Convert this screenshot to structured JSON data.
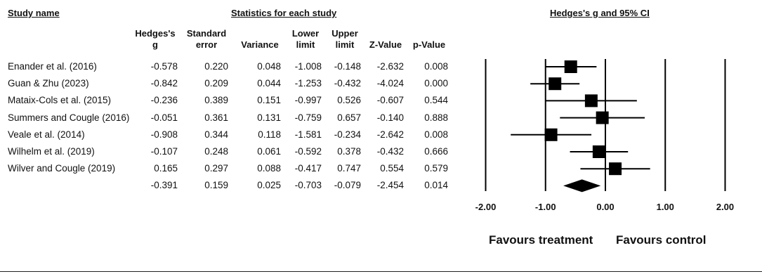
{
  "headers": {
    "study_name": "Study name",
    "stats": "Statistics for each study",
    "plot": "Hedges's g and 95% CI"
  },
  "columns": [
    {
      "line1": "Hedges's",
      "line2": "g"
    },
    {
      "line1": "Standard",
      "line2": "error"
    },
    {
      "line1": "",
      "line2": "Variance"
    },
    {
      "line1": "Lower",
      "line2": "limit"
    },
    {
      "line1": "Upper",
      "line2": "limit"
    },
    {
      "line1": "",
      "line2": "Z-Value"
    },
    {
      "line1": "",
      "line2": "p-Value"
    }
  ],
  "rows": [
    {
      "study": "Enander et al. (2016)",
      "g": "-0.578",
      "se": "0.220",
      "var": "0.048",
      "lower": "-1.008",
      "upper": "-0.148",
      "z": "-2.632",
      "p": "0.008"
    },
    {
      "study": "Guan & Zhu (2023)",
      "g": "-0.842",
      "se": "0.209",
      "var": "0.044",
      "lower": "-1.253",
      "upper": "-0.432",
      "z": "-4.024",
      "p": "0.000"
    },
    {
      "study": "Mataix-Cols et al. (2015)",
      "g": "-0.236",
      "se": "0.389",
      "var": "0.151",
      "lower": "-0.997",
      "upper": "0.526",
      "z": "-0.607",
      "p": "0.544"
    },
    {
      "study": "Summers and Cougle (2016)",
      "g": "-0.051",
      "se": "0.361",
      "var": "0.131",
      "lower": "-0.759",
      "upper": "0.657",
      "z": "-0.140",
      "p": "0.888"
    },
    {
      "study": "Veale et al. (2014)",
      "g": "-0.908",
      "se": "0.344",
      "var": "0.118",
      "lower": "-1.581",
      "upper": "-0.234",
      "z": "-2.642",
      "p": "0.008"
    },
    {
      "study": "Wilhelm et al. (2019)",
      "g": "-0.107",
      "se": "0.248",
      "var": "0.061",
      "lower": "-0.592",
      "upper": "0.378",
      "z": "-0.432",
      "p": "0.666"
    },
    {
      "study": "Wilver and Cougle (2019)",
      "g": "0.165",
      "se": "0.297",
      "var": "0.088",
      "lower": "-0.417",
      "upper": "0.747",
      "z": "0.554",
      "p": "0.579"
    },
    {
      "study": "",
      "g": "-0.391",
      "se": "0.159",
      "var": "0.025",
      "lower": "-0.703",
      "upper": "-0.079",
      "z": "-2.454",
      "p": "0.014"
    }
  ],
  "chart_data": {
    "type": "forest",
    "x_ticks": [
      -2,
      -1,
      0,
      1,
      2
    ],
    "x_tick_labels": [
      "-2.00",
      "-1.00",
      "0.00",
      "1.00",
      "2.00"
    ],
    "xlim": [
      -2,
      2
    ],
    "vertical_lines_at": [
      -2,
      -1,
      0,
      1,
      2
    ],
    "studies": [
      {
        "g": -0.578,
        "lower": -1.008,
        "upper": -0.148
      },
      {
        "g": -0.842,
        "lower": -1.253,
        "upper": -0.432
      },
      {
        "g": -0.236,
        "lower": -0.997,
        "upper": 0.526
      },
      {
        "g": -0.051,
        "lower": -0.759,
        "upper": 0.657
      },
      {
        "g": -0.908,
        "lower": -1.581,
        "upper": -0.234
      },
      {
        "g": -0.107,
        "lower": -0.592,
        "upper": 0.378
      },
      {
        "g": 0.165,
        "lower": -0.417,
        "upper": 0.747
      }
    ],
    "summary": {
      "g": -0.391,
      "lower": -0.703,
      "upper": -0.079
    },
    "favours_left": "Favours treatment",
    "favours_right": "Favours control"
  }
}
